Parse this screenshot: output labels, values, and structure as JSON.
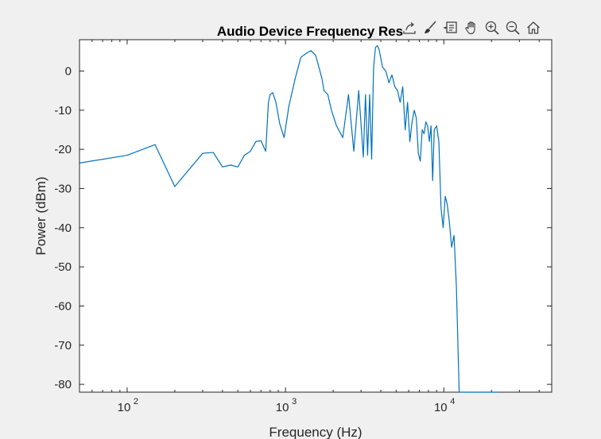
{
  "window": {
    "background": "#f0f0f0"
  },
  "toolbar": {
    "icons": [
      "export-icon",
      "brush-icon",
      "data-tips-icon",
      "pan-icon",
      "zoom-in-icon",
      "zoom-out-icon",
      "home-icon"
    ]
  },
  "chart_data": {
    "type": "line",
    "title": "Audio Device Frequency Res",
    "xlabel": "Frequency (Hz)",
    "ylabel": "Power (dBm)",
    "xscale": "log",
    "xlim": [
      50,
      48000
    ],
    "ylim": [
      -82,
      8
    ],
    "grid": false,
    "line_color": "#0072bd",
    "yticks": [
      0,
      -10,
      -20,
      -30,
      -40,
      -50,
      -60,
      -70,
      -80
    ],
    "ytick_labels": [
      "0",
      "-10",
      "-20",
      "-30",
      "-40",
      "-50",
      "-60",
      "-70",
      "-80"
    ],
    "xticks": [
      {
        "base": "10",
        "exp": "2",
        "value": 100
      },
      {
        "base": "10",
        "exp": "3",
        "value": 1000
      },
      {
        "base": "10",
        "exp": "4",
        "value": 10000
      }
    ],
    "series": [
      {
        "x": [
          50,
          100,
          150,
          200,
          300,
          350,
          400,
          450,
          500,
          550,
          600,
          650,
          700,
          750,
          780,
          800,
          830,
          870,
          920,
          980,
          1050,
          1150,
          1250,
          1350,
          1450,
          1550,
          1650,
          1700,
          1750,
          1850,
          1950,
          2100,
          2300,
          2500,
          2700,
          2900,
          3100,
          3200,
          3300,
          3400,
          3500,
          3600,
          3700,
          3800,
          3900,
          4100,
          4300,
          4500,
          4700,
          4900,
          5100,
          5300,
          5500,
          5700,
          5900,
          6100,
          6300,
          6500,
          6700,
          6900,
          7100,
          7300,
          7500,
          7700,
          7900,
          8100,
          8300,
          8500,
          8700,
          9000,
          9300,
          9600,
          9900,
          10200,
          10500,
          10800,
          11200,
          11600,
          12000,
          12500,
          13000,
          13500,
          14000,
          14500,
          15000,
          15500,
          16000,
          16500,
          17000,
          17500,
          18000,
          18500,
          19000,
          19500,
          20000,
          20500,
          21000,
          21300,
          21600,
          21800,
          22000,
          22100,
          22150
        ],
        "y": [
          -23.5,
          -21.5,
          -18.8,
          -29.5,
          -21,
          -20.8,
          -24.5,
          -24,
          -24.5,
          -21.5,
          -20.5,
          -18,
          -17.8,
          -20.5,
          -8,
          -6,
          -5.5,
          -8,
          -13.5,
          -17,
          -9,
          -2,
          3.5,
          4.5,
          5.2,
          4,
          0,
          -2,
          -5,
          -6,
          -10,
          -14,
          -17,
          -6,
          -20.5,
          -5,
          -22,
          -6,
          -21.5,
          -6,
          -22.5,
          1,
          6,
          6.5,
          5.5,
          1,
          0,
          -3,
          -1,
          -4,
          -5,
          -8,
          -4,
          -15,
          -8,
          -18,
          -13,
          -10,
          -12,
          -21,
          -23,
          -15,
          -16,
          -13,
          -14,
          -18,
          -14,
          -28,
          -15,
          -14,
          -18,
          -35,
          -40,
          -32,
          -34,
          -38,
          -45,
          -42,
          -55,
          -82,
          -82,
          -82,
          -82,
          -82,
          -82,
          -82,
          -82,
          -82,
          -82,
          -82,
          -82,
          -82,
          -82,
          -82,
          -82,
          -82,
          -82,
          -82,
          -82,
          -82,
          -82,
          -82,
          -82
        ]
      }
    ]
  }
}
